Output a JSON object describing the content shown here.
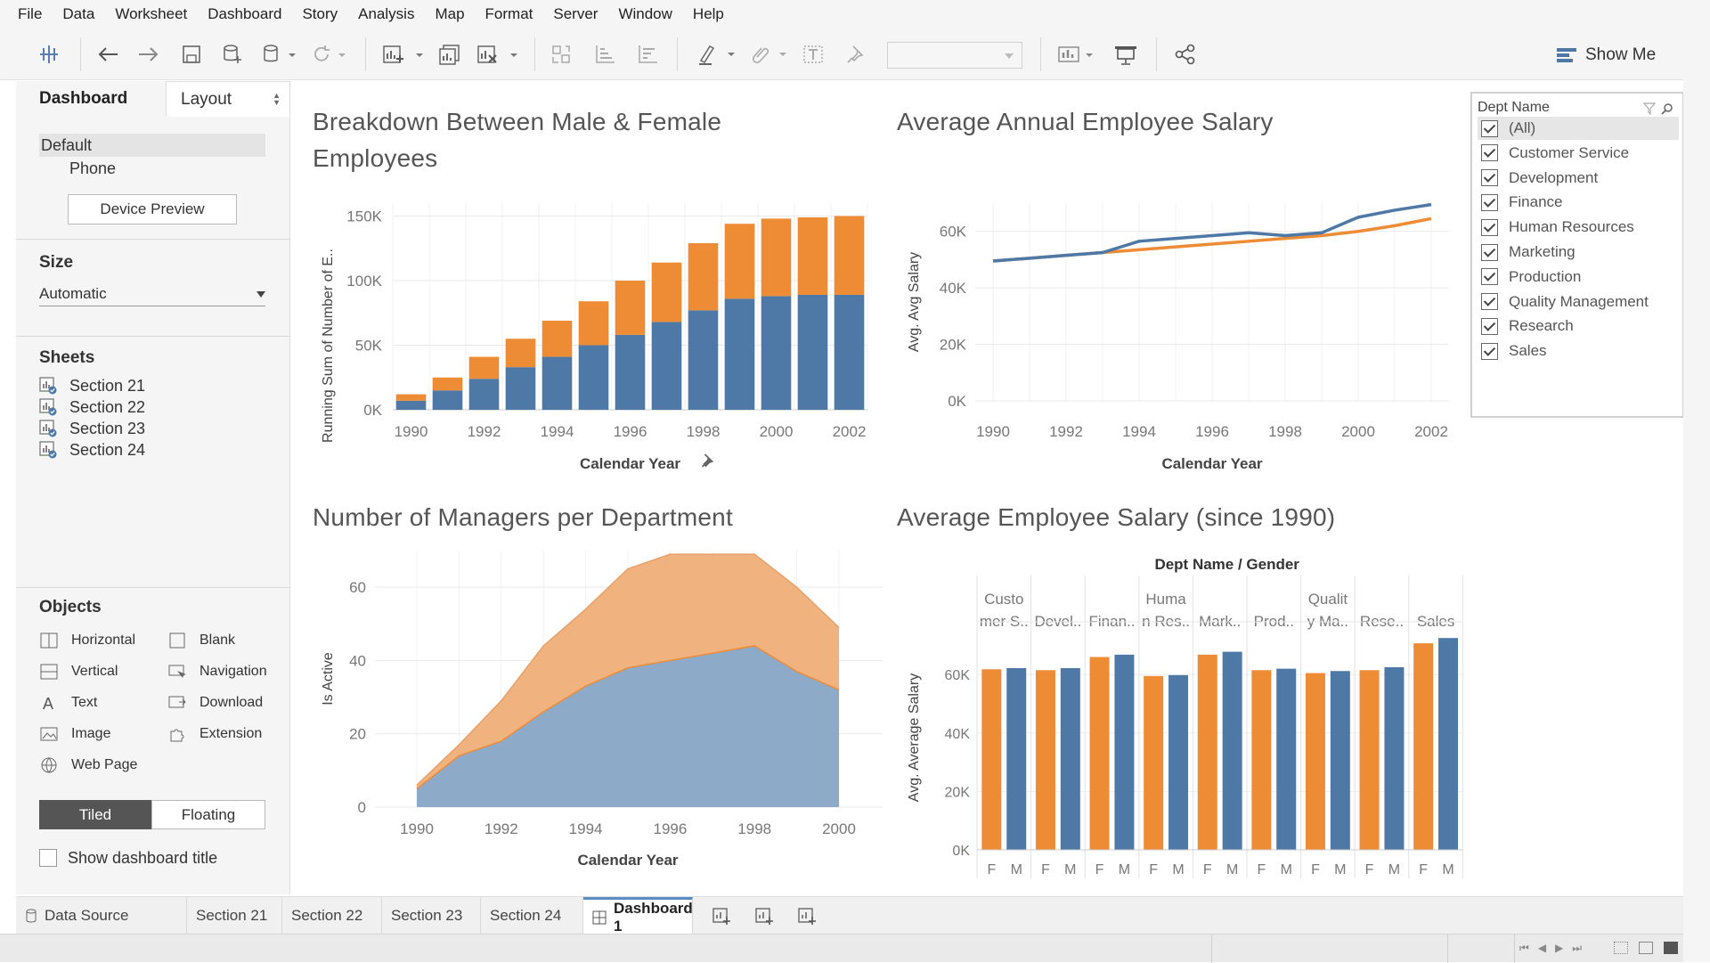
{
  "menu": [
    "File",
    "Data",
    "Worksheet",
    "Dashboard",
    "Story",
    "Analysis",
    "Map",
    "Format",
    "Server",
    "Window",
    "Help"
  ],
  "toolbar": {
    "show_me": "Show Me"
  },
  "left_panel": {
    "tab_dashboard": "Dashboard",
    "tab_layout": "Layout",
    "devices": [
      "Default",
      "Phone"
    ],
    "device_preview": "Device Preview",
    "size_title": "Size",
    "size_value": "Automatic",
    "sheets_title": "Sheets",
    "sheets": [
      "Section 21",
      "Section 22",
      "Section 23",
      "Section 24"
    ],
    "objects_title": "Objects",
    "objects": [
      {
        "label": "Horizontal",
        "icon": "horizontal-icon"
      },
      {
        "label": "Blank",
        "icon": "blank-icon"
      },
      {
        "label": "Vertical",
        "icon": "vertical-icon"
      },
      {
        "label": "Navigation",
        "icon": "navigation-icon"
      },
      {
        "label": "Text",
        "icon": "text-icon"
      },
      {
        "label": "Download",
        "icon": "download-icon"
      },
      {
        "label": "Image",
        "icon": "image-icon"
      },
      {
        "label": "Extension",
        "icon": "extension-icon"
      },
      {
        "label": "Web Page",
        "icon": "web-page-icon"
      }
    ],
    "tiled": "Tiled",
    "floating": "Floating",
    "show_title": "Show dashboard title"
  },
  "filter": {
    "title": "Dept Name",
    "items": [
      "(All)",
      "Customer Service",
      "Development",
      "Finance",
      "Human Resources",
      "Marketing",
      "Production",
      "Quality Management",
      "Research",
      "Sales"
    ]
  },
  "tabs": [
    "Data Source",
    "Section 21",
    "Section 22",
    "Section 23",
    "Section 24",
    "Dashboard 1"
  ],
  "colors": {
    "female": "#ee8c36",
    "male": "#4e79a7",
    "female_area": "#f0b27e",
    "male_area": "#8eaac9"
  },
  "chart_data": [
    {
      "type": "bar",
      "title_lines": [
        "Breakdown Between Male & Female",
        "Employees"
      ],
      "xlabel": "Calendar Year",
      "ylabel": "Running Sum of Number of E..",
      "categories": [
        "1990",
        "1991",
        "1992",
        "1993",
        "1994",
        "1995",
        "1996",
        "1997",
        "1998",
        "1999",
        "2000",
        "2001",
        "2002"
      ],
      "x_ticks": [
        "1990",
        "1992",
        "1994",
        "1996",
        "1998",
        "2000",
        "2002"
      ],
      "y_ticks": [
        "0K",
        "50K",
        "100K",
        "150K"
      ],
      "ylim": [
        0,
        160000
      ],
      "series": [
        {
          "key": "male",
          "values": [
            7000,
            15000,
            24000,
            33000,
            41000,
            50000,
            58000,
            68000,
            77000,
            86000,
            88000,
            89000,
            89000
          ]
        },
        {
          "key": "female",
          "values": [
            5000,
            10000,
            17000,
            22000,
            28000,
            34000,
            42000,
            46000,
            52000,
            58000,
            60000,
            60000,
            61000
          ]
        }
      ]
    },
    {
      "type": "line",
      "title": "Average Annual Employee Salary",
      "xlabel": "Calendar Year",
      "ylabel": "Avg. Avg Salary",
      "x": [
        1990,
        1991,
        1992,
        1993,
        1994,
        1995,
        1996,
        1997,
        1998,
        1999,
        2000,
        2001,
        2002
      ],
      "x_ticks": [
        "1990",
        "1992",
        "1994",
        "1996",
        "1998",
        "2000",
        "2002"
      ],
      "y_ticks": [
        "0K",
        "20K",
        "40K",
        "60K"
      ],
      "ylim": [
        0,
        70000
      ],
      "series": [
        {
          "key": "male",
          "values": [
            49500,
            50500,
            51500,
            52500,
            56500,
            57500,
            58500,
            59500,
            58500,
            59500,
            65000,
            67500,
            69500
          ]
        },
        {
          "key": "female",
          "values": [
            49500,
            50500,
            51500,
            52500,
            53500,
            54500,
            55500,
            56500,
            57500,
            58500,
            60000,
            62000,
            64500
          ]
        }
      ]
    },
    {
      "type": "area",
      "title": "Number of Managers per Department",
      "xlabel": "Calendar Year",
      "ylabel": "Is Active",
      "x": [
        1990,
        1991,
        1992,
        1993,
        1994,
        1995,
        1996,
        1997,
        1998,
        1999,
        2000
      ],
      "x_ticks": [
        "1990",
        "1992",
        "1994",
        "1996",
        "1998",
        "2000"
      ],
      "y_ticks": [
        "0",
        "20",
        "40",
        "60"
      ],
      "ylim": [
        0,
        70
      ],
      "series": [
        {
          "key": "male",
          "values": [
            5,
            14,
            18,
            26,
            33,
            38,
            40,
            42,
            44,
            37,
            32
          ]
        },
        {
          "key": "female",
          "values": [
            1,
            3,
            11,
            18,
            21,
            27,
            29,
            27,
            25,
            23,
            17
          ]
        }
      ]
    },
    {
      "type": "bar",
      "title": "Average Employee Salary (since 1990)",
      "header": "Dept Name / Gender",
      "ylabel": "Avg. Average Salary",
      "departments": [
        [
          "Custo",
          "mer S.."
        ],
        [
          "Devel.."
        ],
        [
          "Finan.."
        ],
        [
          "Huma",
          "n Res.."
        ],
        [
          "Mark.."
        ],
        [
          "Prod.."
        ],
        [
          "Qualit",
          "y Ma.."
        ],
        [
          "Rese.."
        ],
        [
          "Sales"
        ]
      ],
      "genders": [
        "F",
        "M"
      ],
      "y_ticks": [
        "0K",
        "20K",
        "40K",
        "60K"
      ],
      "ylim": [
        0,
        75000
      ],
      "values": [
        [
          61800,
          62200
        ],
        [
          61500,
          62200
        ],
        [
          66000,
          66800
        ],
        [
          59500,
          59800
        ],
        [
          66800,
          67800
        ],
        [
          61500,
          62000
        ],
        [
          60500,
          61200
        ],
        [
          61500,
          62500
        ],
        [
          70700,
          72500
        ]
      ]
    }
  ]
}
